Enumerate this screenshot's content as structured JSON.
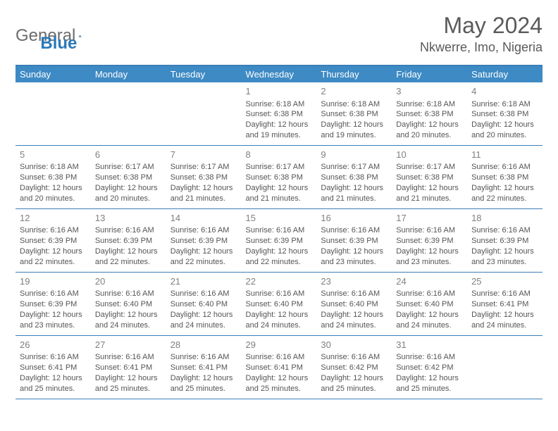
{
  "logo": {
    "text1": "General",
    "text2": "Blue"
  },
  "title": "May 2024",
  "location": "Nkwerre, Imo, Nigeria",
  "colors": {
    "header_bg": "#3e8ac4",
    "header_text": "#ffffff",
    "border": "#3a7fb8",
    "body_text": "#555555",
    "daynum": "#808080",
    "title_text": "#5a5a5a",
    "logo_gray": "#6b6b6b",
    "logo_blue": "#2a7ab8",
    "background": "#ffffff"
  },
  "typography": {
    "title_fontsize": 32,
    "location_fontsize": 18,
    "header_fontsize": 13,
    "daynum_fontsize": 13,
    "cell_fontsize": 11,
    "logo_fontsize": 24
  },
  "day_headers": [
    "Sunday",
    "Monday",
    "Tuesday",
    "Wednesday",
    "Thursday",
    "Friday",
    "Saturday"
  ],
  "weeks": [
    [
      null,
      null,
      null,
      {
        "n": "1",
        "sr": "6:18 AM",
        "ss": "6:38 PM",
        "dl": "12 hours and 19 minutes."
      },
      {
        "n": "2",
        "sr": "6:18 AM",
        "ss": "6:38 PM",
        "dl": "12 hours and 19 minutes."
      },
      {
        "n": "3",
        "sr": "6:18 AM",
        "ss": "6:38 PM",
        "dl": "12 hours and 20 minutes."
      },
      {
        "n": "4",
        "sr": "6:18 AM",
        "ss": "6:38 PM",
        "dl": "12 hours and 20 minutes."
      }
    ],
    [
      {
        "n": "5",
        "sr": "6:18 AM",
        "ss": "6:38 PM",
        "dl": "12 hours and 20 minutes."
      },
      {
        "n": "6",
        "sr": "6:17 AM",
        "ss": "6:38 PM",
        "dl": "12 hours and 20 minutes."
      },
      {
        "n": "7",
        "sr": "6:17 AM",
        "ss": "6:38 PM",
        "dl": "12 hours and 21 minutes."
      },
      {
        "n": "8",
        "sr": "6:17 AM",
        "ss": "6:38 PM",
        "dl": "12 hours and 21 minutes."
      },
      {
        "n": "9",
        "sr": "6:17 AM",
        "ss": "6:38 PM",
        "dl": "12 hours and 21 minutes."
      },
      {
        "n": "10",
        "sr": "6:17 AM",
        "ss": "6:38 PM",
        "dl": "12 hours and 21 minutes."
      },
      {
        "n": "11",
        "sr": "6:16 AM",
        "ss": "6:38 PM",
        "dl": "12 hours and 22 minutes."
      }
    ],
    [
      {
        "n": "12",
        "sr": "6:16 AM",
        "ss": "6:39 PM",
        "dl": "12 hours and 22 minutes."
      },
      {
        "n": "13",
        "sr": "6:16 AM",
        "ss": "6:39 PM",
        "dl": "12 hours and 22 minutes."
      },
      {
        "n": "14",
        "sr": "6:16 AM",
        "ss": "6:39 PM",
        "dl": "12 hours and 22 minutes."
      },
      {
        "n": "15",
        "sr": "6:16 AM",
        "ss": "6:39 PM",
        "dl": "12 hours and 22 minutes."
      },
      {
        "n": "16",
        "sr": "6:16 AM",
        "ss": "6:39 PM",
        "dl": "12 hours and 23 minutes."
      },
      {
        "n": "17",
        "sr": "6:16 AM",
        "ss": "6:39 PM",
        "dl": "12 hours and 23 minutes."
      },
      {
        "n": "18",
        "sr": "6:16 AM",
        "ss": "6:39 PM",
        "dl": "12 hours and 23 minutes."
      }
    ],
    [
      {
        "n": "19",
        "sr": "6:16 AM",
        "ss": "6:39 PM",
        "dl": "12 hours and 23 minutes."
      },
      {
        "n": "20",
        "sr": "6:16 AM",
        "ss": "6:40 PM",
        "dl": "12 hours and 24 minutes."
      },
      {
        "n": "21",
        "sr": "6:16 AM",
        "ss": "6:40 PM",
        "dl": "12 hours and 24 minutes."
      },
      {
        "n": "22",
        "sr": "6:16 AM",
        "ss": "6:40 PM",
        "dl": "12 hours and 24 minutes."
      },
      {
        "n": "23",
        "sr": "6:16 AM",
        "ss": "6:40 PM",
        "dl": "12 hours and 24 minutes."
      },
      {
        "n": "24",
        "sr": "6:16 AM",
        "ss": "6:40 PM",
        "dl": "12 hours and 24 minutes."
      },
      {
        "n": "25",
        "sr": "6:16 AM",
        "ss": "6:41 PM",
        "dl": "12 hours and 24 minutes."
      }
    ],
    [
      {
        "n": "26",
        "sr": "6:16 AM",
        "ss": "6:41 PM",
        "dl": "12 hours and 25 minutes."
      },
      {
        "n": "27",
        "sr": "6:16 AM",
        "ss": "6:41 PM",
        "dl": "12 hours and 25 minutes."
      },
      {
        "n": "28",
        "sr": "6:16 AM",
        "ss": "6:41 PM",
        "dl": "12 hours and 25 minutes."
      },
      {
        "n": "29",
        "sr": "6:16 AM",
        "ss": "6:41 PM",
        "dl": "12 hours and 25 minutes."
      },
      {
        "n": "30",
        "sr": "6:16 AM",
        "ss": "6:42 PM",
        "dl": "12 hours and 25 minutes."
      },
      {
        "n": "31",
        "sr": "6:16 AM",
        "ss": "6:42 PM",
        "dl": "12 hours and 25 minutes."
      },
      null
    ]
  ],
  "labels": {
    "sunrise": "Sunrise: ",
    "sunset": "Sunset: ",
    "daylight": "Daylight: "
  }
}
